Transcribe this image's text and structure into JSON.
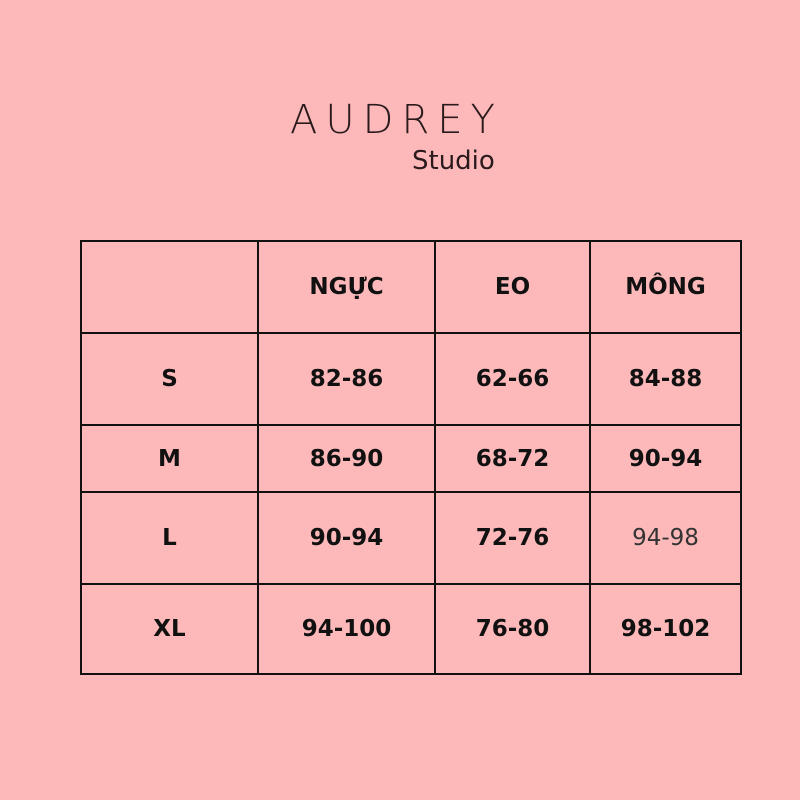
{
  "brand": {
    "name": "AUDREY",
    "sub": "Studio"
  },
  "table": {
    "headers": [
      "",
      "NGỰC",
      "EO",
      "MÔNG"
    ],
    "rows": [
      {
        "size": "S",
        "values": [
          "82-86",
          "62-66",
          "84-88"
        ]
      },
      {
        "size": "M",
        "values": [
          "86-90",
          "68-72",
          "90-94"
        ]
      },
      {
        "size": "L",
        "values": [
          "90-94",
          "72-76",
          "94-98"
        ]
      },
      {
        "size": "XL",
        "values": [
          "94-100",
          "76-80",
          "98-102"
        ]
      }
    ]
  },
  "colors": {
    "background": "#fdb9ba",
    "text": "#111111"
  }
}
